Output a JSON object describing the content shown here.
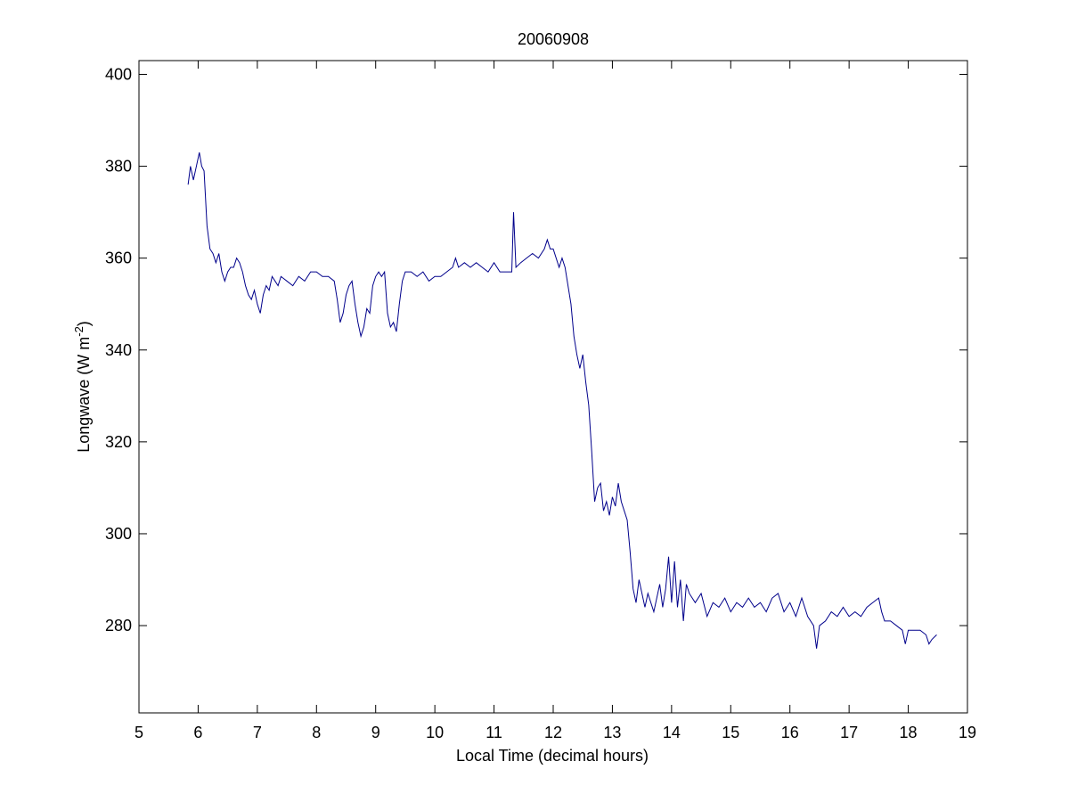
{
  "chart_data": {
    "type": "line",
    "title": "20060908",
    "xlabel": "Local Time (decimal hours)",
    "ylabel": {
      "text": "Longwave (W m",
      "superscript": "-2",
      "suffix": ")"
    },
    "xlim": [
      5,
      19
    ],
    "ylim": [
      261,
      403
    ],
    "xticks": [
      5,
      6,
      7,
      8,
      9,
      10,
      11,
      12,
      13,
      14,
      15,
      16,
      17,
      18,
      19
    ],
    "yticks": [
      280,
      300,
      320,
      340,
      360,
      380,
      400
    ],
    "grid": false,
    "x": [
      5.83,
      5.87,
      5.92,
      5.97,
      6.02,
      6.06,
      6.1,
      6.15,
      6.2,
      6.25,
      6.3,
      6.35,
      6.4,
      6.45,
      6.5,
      6.55,
      6.6,
      6.65,
      6.7,
      6.75,
      6.8,
      6.85,
      6.9,
      6.95,
      7.0,
      7.05,
      7.1,
      7.15,
      7.2,
      7.25,
      7.3,
      7.35,
      7.4,
      7.5,
      7.6,
      7.7,
      7.8,
      7.9,
      8.0,
      8.1,
      8.2,
      8.3,
      8.35,
      8.4,
      8.45,
      8.5,
      8.55,
      8.6,
      8.65,
      8.7,
      8.75,
      8.8,
      8.85,
      8.9,
      8.95,
      9.0,
      9.05,
      9.1,
      9.15,
      9.2,
      9.25,
      9.3,
      9.35,
      9.4,
      9.45,
      9.5,
      9.6,
      9.7,
      9.8,
      9.9,
      10.0,
      10.1,
      10.2,
      10.3,
      10.35,
      10.4,
      10.5,
      10.6,
      10.7,
      10.8,
      10.9,
      11.0,
      11.1,
      11.2,
      11.3,
      11.33,
      11.37,
      11.45,
      11.55,
      11.65,
      11.75,
      11.85,
      11.9,
      11.95,
      12.0,
      12.05,
      12.1,
      12.15,
      12.2,
      12.25,
      12.3,
      12.35,
      12.4,
      12.45,
      12.5,
      12.55,
      12.6,
      12.65,
      12.7,
      12.75,
      12.8,
      12.85,
      12.9,
      12.95,
      13.0,
      13.05,
      13.1,
      13.15,
      13.2,
      13.25,
      13.3,
      13.35,
      13.4,
      13.45,
      13.5,
      13.55,
      13.6,
      13.7,
      13.8,
      13.85,
      13.9,
      13.95,
      14.0,
      14.05,
      14.1,
      14.15,
      14.2,
      14.25,
      14.3,
      14.4,
      14.5,
      14.6,
      14.7,
      14.8,
      14.9,
      15.0,
      15.1,
      15.2,
      15.3,
      15.4,
      15.5,
      15.6,
      15.7,
      15.8,
      15.9,
      16.0,
      16.1,
      16.2,
      16.3,
      16.4,
      16.45,
      16.5,
      16.6,
      16.7,
      16.8,
      16.9,
      17.0,
      17.1,
      17.2,
      17.3,
      17.4,
      17.5,
      17.55,
      17.6,
      17.7,
      17.8,
      17.9,
      17.95,
      18.0,
      18.1,
      18.2,
      18.3,
      18.35,
      18.4,
      18.48
    ],
    "series": [
      {
        "color": "#00008b",
        "values": [
          376,
          380,
          377,
          380,
          383,
          380,
          379,
          367,
          362,
          361,
          359,
          361,
          357,
          355,
          357,
          358,
          358,
          360,
          359,
          357,
          354,
          352,
          351,
          353,
          350,
          348,
          352,
          354,
          353,
          356,
          355,
          354,
          356,
          355,
          354,
          356,
          355,
          357,
          357,
          356,
          356,
          355,
          351,
          346,
          348,
          352,
          354,
          355,
          350,
          346,
          343,
          345,
          349,
          348,
          354,
          356,
          357,
          356,
          357,
          348,
          345,
          346,
          344,
          350,
          355,
          357,
          357,
          356,
          357,
          355,
          356,
          356,
          357,
          358,
          360,
          358,
          359,
          358,
          359,
          358,
          357,
          359,
          357,
          357,
          357,
          370,
          358,
          359,
          360,
          361,
          360,
          362,
          364,
          362,
          362,
          360,
          358,
          360,
          358,
          354,
          350,
          343,
          339,
          336,
          339,
          333,
          328,
          318,
          307,
          310,
          311,
          305,
          307,
          304,
          308,
          306,
          311,
          307,
          305,
          303,
          296,
          288,
          285,
          290,
          287,
          284,
          287,
          283,
          289,
          284,
          288,
          295,
          285,
          294,
          284,
          290,
          281,
          289,
          287,
          285,
          287,
          282,
          285,
          284,
          286,
          283,
          285,
          284,
          286,
          284,
          285,
          283,
          286,
          287,
          283,
          285,
          282,
          286,
          282,
          280,
          275,
          280,
          281,
          283,
          282,
          284,
          282,
          283,
          282,
          284,
          285,
          286,
          283,
          281,
          281,
          280,
          279,
          276,
          279,
          279,
          279,
          278,
          276,
          277,
          278
        ]
      }
    ]
  }
}
